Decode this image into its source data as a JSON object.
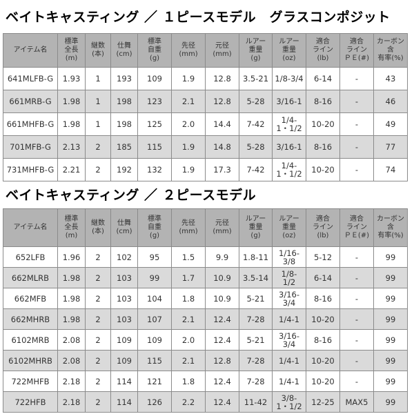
{
  "table1": {
    "title": "ベイトキャスティング ／ １ピースモデル　グラスコンポジット",
    "headers": [
      "アイテム名",
      "標準\n全長\n(m)",
      "継数\n(本)",
      "仕舞\n(cm)",
      "標準\n自重\n(g)",
      "先径\n(mm)",
      "元径\n(mm)",
      "ルアー\n重量\n(g)",
      "ルアー\n重量\n(oz)",
      "適合\nライン\n(lb)",
      "適合\nライン\nＰＥ(#)",
      "カーボン含\n有率(%)"
    ],
    "rows": [
      [
        "641MLFB-G",
        "1.93",
        "1",
        "193",
        "109",
        "1.9",
        "12.8",
        "3.5-21",
        "1/8-3/4",
        "6-14",
        "-",
        "43"
      ],
      [
        "661MRB-G",
        "1.98",
        "1",
        "198",
        "123",
        "2.1",
        "12.8",
        "5-28",
        "3/16-1",
        "8-16",
        "-",
        "46"
      ],
      [
        "661MHFB-G",
        "1.98",
        "1",
        "198",
        "125",
        "2.0",
        "14.4",
        "7-42",
        "1/4-\n1・1/2",
        "10-20",
        "-",
        "49"
      ],
      [
        "701MFB-G",
        "2.13",
        "2",
        "185",
        "115",
        "1.9",
        "14.8",
        "5-28",
        "3/16-1",
        "8-16",
        "-",
        "77"
      ],
      [
        "731MHFB-G",
        "2.21",
        "2",
        "192",
        "132",
        "1.9",
        "17.3",
        "7-42",
        "1/4-\n1・1/2",
        "10-20",
        "-",
        "74"
      ]
    ]
  },
  "table2": {
    "title": "ベイトキャスティング ／ ２ピースモデル",
    "headers": [
      "アイテム名",
      "標準\n全長\n(m)",
      "継数\n(本)",
      "仕舞\n(cm)",
      "標準\n自重\n(g)",
      "先径\n(mm)",
      "元径\n(mm)",
      "ルアー\n重量\n(g)",
      "ルアー\n重量\n(oz)",
      "適合\nライン\n(lb)",
      "適合\nライン\nＰＥ(#)",
      "カーボン含\n有率(%)"
    ],
    "rows": [
      [
        "652LFB",
        "1.96",
        "2",
        "102",
        "95",
        "1.5",
        "9.9",
        "1.8-11",
        "1/16-\n3/8",
        "5-12",
        "-",
        "99"
      ],
      [
        "662MLRB",
        "1.98",
        "2",
        "103",
        "99",
        "1.7",
        "10.9",
        "3.5-14",
        "1/8-\n1/2",
        "6-14",
        "-",
        "99"
      ],
      [
        "662MFB",
        "1.98",
        "2",
        "103",
        "104",
        "1.8",
        "10.9",
        "5-21",
        "3/16-\n3/4",
        "8-16",
        "-",
        "99"
      ],
      [
        "662MHRB",
        "1.98",
        "2",
        "103",
        "107",
        "2.1",
        "12.4",
        "7-28",
        "1/4-1",
        "10-20",
        "-",
        "99"
      ],
      [
        "6102MRB",
        "2.08",
        "2",
        "109",
        "109",
        "2.0",
        "12.4",
        "5-21",
        "3/16-\n3/4",
        "8-16",
        "-",
        "99"
      ],
      [
        "6102MHRB",
        "2.08",
        "2",
        "109",
        "115",
        "2.1",
        "12.8",
        "7-28",
        "1/4-1",
        "10-20",
        "-",
        "99"
      ],
      [
        "722MHFB",
        "2.18",
        "2",
        "114",
        "121",
        "1.8",
        "12.4",
        "7-28",
        "1/4-1",
        "10-20",
        "-",
        "99"
      ],
      [
        "722HFB",
        "2.18",
        "2",
        "114",
        "126",
        "2.2",
        "12.4",
        "11-42",
        "3/8-\n1・1/2",
        "12-25",
        "MAX5",
        "99"
      ]
    ]
  }
}
